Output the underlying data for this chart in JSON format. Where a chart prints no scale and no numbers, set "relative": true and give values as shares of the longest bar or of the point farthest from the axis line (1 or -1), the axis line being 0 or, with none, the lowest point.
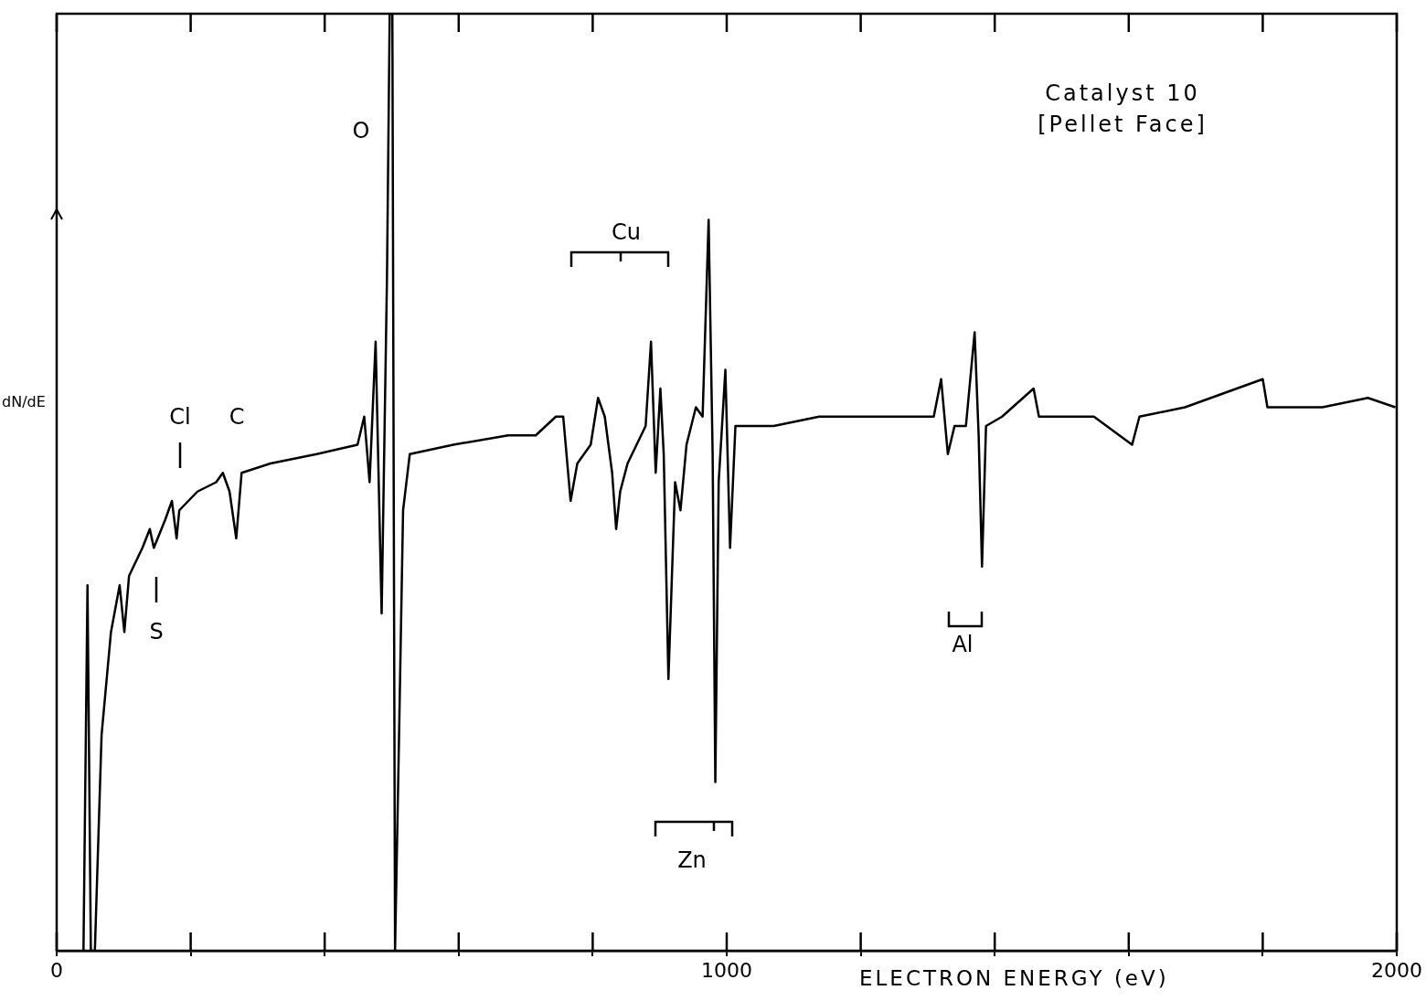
{
  "chart_data": {
    "type": "line",
    "title": "Catalyst 10",
    "subtitle": "[Pellet Face]",
    "xlabel": "ELECTRON ENERGY (eV)",
    "ylabel": "dN/dE",
    "relative": true,
    "grid": false,
    "legend": false,
    "marker": "none",
    "line_style": "solid",
    "xlim": [
      0,
      2000
    ],
    "xticks": [
      0,
      {
        "value": 200,
        "label": null
      },
      {
        "value": 400,
        "label": null
      },
      {
        "value": 600,
        "label": null
      },
      {
        "value": 800,
        "label": null
      },
      1000,
      {
        "value": 1200,
        "label": null
      },
      {
        "value": 1400,
        "label": null
      },
      {
        "value": 1600,
        "label": null
      },
      {
        "value": 1800,
        "label": null
      },
      2000
    ],
    "series": [
      {
        "color": "#000000",
        "x": [
          40,
          46,
          51,
          57,
          67,
          81,
          94,
          101,
          108,
          128,
          139,
          145,
          162,
          172,
          179,
          183,
          210,
          238,
          248,
          258,
          268,
          276,
          319,
          388,
          449,
          459,
          467,
          476,
          485,
          493,
          497,
          501,
          505,
          511,
          517,
          527,
          592,
          674,
          715,
          745,
          756,
          767,
          777,
          797,
          808,
          818,
          829,
          835,
          841,
          852,
          879,
          887,
          894,
          901,
          906,
          913,
          923,
          931,
          940,
          954,
          964,
          973,
          979,
          983,
          988,
          998,
          1005,
          1013,
          1070,
          1138,
          1275,
          1309,
          1320,
          1330,
          1340,
          1357,
          1370,
          1376,
          1381,
          1387,
          1411,
          1458,
          1466,
          1548,
          1605,
          1616,
          1684,
          1800,
          1807,
          1889,
          1957,
          1998
        ],
        "values": [
          0,
          0.39,
          0,
          0,
          0.23,
          0.34,
          0.39,
          0.34,
          0.4,
          0.43,
          0.45,
          0.43,
          0.46,
          0.48,
          0.44,
          0.47,
          0.49,
          0.5,
          0.51,
          0.49,
          0.44,
          0.51,
          0.52,
          0.53,
          0.54,
          0.57,
          0.5,
          0.65,
          0.36,
          0.72,
          1,
          1,
          0,
          0.23,
          0.47,
          0.53,
          0.54,
          0.55,
          0.55,
          0.57,
          0.57,
          0.48,
          0.52,
          0.54,
          0.59,
          0.57,
          0.51,
          0.45,
          0.49,
          0.52,
          0.56,
          0.65,
          0.51,
          0.6,
          0.53,
          0.29,
          0.5,
          0.47,
          0.54,
          0.58,
          0.57,
          0.78,
          0.53,
          0.18,
          0.5,
          0.62,
          0.43,
          0.56,
          0.56,
          0.57,
          0.57,
          0.57,
          0.61,
          0.53,
          0.56,
          0.56,
          0.66,
          0.55,
          0.41,
          0.56,
          0.57,
          0.6,
          0.57,
          0.57,
          0.54,
          0.57,
          0.58,
          0.61,
          0.58,
          0.58,
          0.59,
          0.58
        ]
      }
    ],
    "annotations": [
      "O",
      "Cl",
      "C",
      "S",
      "Cu",
      "Zn",
      "Al"
    ]
  }
}
